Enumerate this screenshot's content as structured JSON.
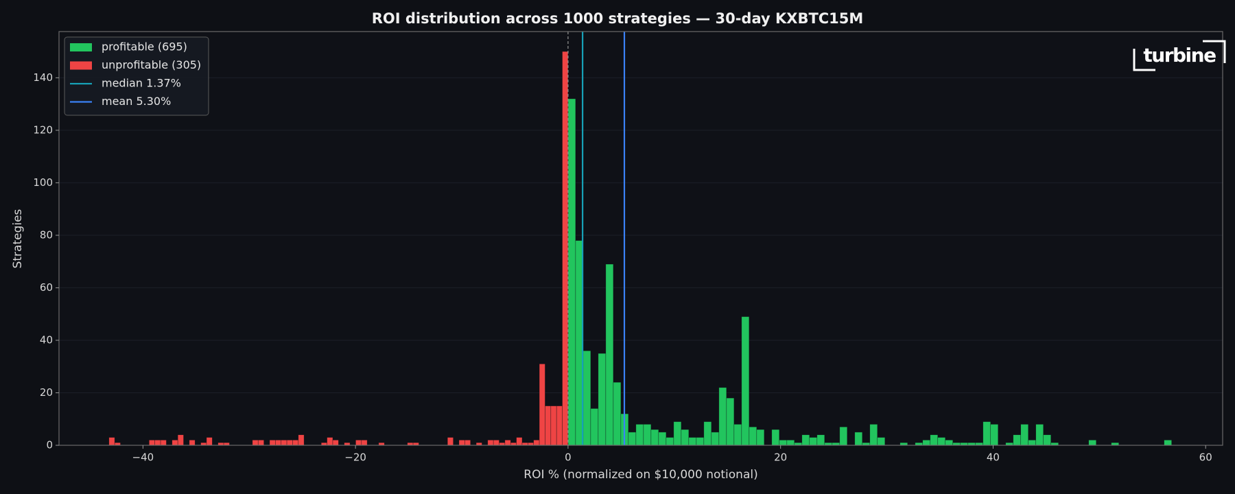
{
  "chart_data": {
    "type": "histogram",
    "title": "ROI distribution across 1000 strategies — 30-day KXBTC15M",
    "xlabel": "ROI % (normalized on $10,000 notional)",
    "ylabel": "Strategies",
    "logo": "turbine",
    "xlim": [
      -47.9,
      61.6
    ],
    "ylim": [
      0,
      157.6
    ],
    "xticks": [
      {
        "value": -40,
        "label": "−40"
      },
      {
        "value": -20,
        "label": "−20"
      },
      0,
      20,
      40,
      60
    ],
    "yticks": [
      0,
      20,
      40,
      60,
      80,
      100,
      120,
      140
    ],
    "grid": true,
    "legend_position": "upper left",
    "series": [
      {
        "name": "profitable (695)",
        "color": "#22c55e",
        "bins": [
          0,
          0.71,
          1.42,
          2.13,
          2.84,
          3.55,
          4.26,
          4.97,
          5.68,
          6.39,
          7.1,
          7.81,
          8.52,
          9.23,
          9.94,
          10.65,
          11.36,
          12.07,
          12.78,
          13.49,
          14.2,
          14.91,
          15.62,
          16.33,
          17.04,
          17.75,
          18.46,
          19.17,
          19.88,
          20.59,
          21.3,
          22.01,
          22.72,
          23.43,
          24.14,
          24.85,
          25.56,
          26.27,
          26.98,
          27.69,
          28.4,
          29.11,
          29.82,
          30.53,
          31.24,
          31.95,
          32.66,
          33.37,
          34.08,
          34.79,
          35.5,
          36.21,
          36.92,
          37.63,
          38.34,
          39.05,
          39.76,
          40.47,
          41.18,
          41.89,
          42.6,
          43.31,
          44.02,
          44.73,
          45.44,
          46.15,
          46.86,
          47.57,
          48.28,
          48.99,
          49.7,
          50.41,
          51.12,
          51.83,
          52.54,
          53.25,
          53.96,
          54.67,
          55.38,
          56.09,
          56.8
        ],
        "values": [
          132,
          78,
          36,
          14,
          35,
          69,
          24,
          12,
          5,
          8,
          8,
          6,
          5,
          3,
          9,
          6,
          3,
          3,
          9,
          5,
          22,
          18,
          8,
          49,
          7,
          6,
          0,
          6,
          2,
          2,
          1,
          4,
          3,
          4,
          1,
          1,
          7,
          0,
          5,
          1,
          8,
          3,
          0,
          0,
          1,
          0,
          1,
          2,
          4,
          3,
          2,
          1,
          1,
          1,
          1,
          9,
          8,
          0,
          1,
          4,
          8,
          2,
          8,
          4,
          1,
          0,
          0,
          0,
          0,
          2,
          0,
          0,
          1,
          0,
          0,
          0,
          0,
          0,
          0,
          2
        ]
      },
      {
        "name": "unprofitable (305)",
        "color": "#ef4444",
        "bins": [
          -43.2,
          -42.66,
          -42.12,
          -41.58,
          -41.04,
          -40.5,
          -39.96,
          -39.42,
          -38.88,
          -38.34,
          -37.8,
          -37.26,
          -36.72,
          -36.18,
          -35.64,
          -35.1,
          -34.56,
          -34.02,
          -33.48,
          -32.94,
          -32.4,
          -31.86,
          -31.32,
          -30.78,
          -30.24,
          -29.7,
          -29.16,
          -28.62,
          -28.08,
          -27.54,
          -27,
          -26.46,
          -25.92,
          -25.38,
          -24.84,
          -24.3,
          -23.76,
          -23.22,
          -22.68,
          -22.14,
          -21.6,
          -21.06,
          -20.52,
          -19.98,
          -19.44,
          -18.9,
          -18.36,
          -17.82,
          -17.28,
          -16.74,
          -16.2,
          -15.66,
          -15.12,
          -14.58,
          -14.04,
          -13.5,
          -12.96,
          -12.42,
          -11.88,
          -11.34,
          -10.8,
          -10.26,
          -9.72,
          -9.18,
          -8.64,
          -8.1,
          -7.56,
          -7.02,
          -6.48,
          -5.94,
          -5.4,
          -4.86,
          -4.32,
          -3.78,
          -3.24,
          -2.7,
          -2.16,
          -1.62,
          -1.08,
          -0.54,
          0
        ],
        "values": [
          3,
          1,
          0,
          0,
          0,
          0,
          0,
          2,
          2,
          2,
          0,
          2,
          4,
          0,
          2,
          0,
          1,
          3,
          0,
          1,
          1,
          0,
          0,
          0,
          0,
          2,
          2,
          0,
          2,
          2,
          2,
          2,
          2,
          4,
          0,
          0,
          0,
          1,
          3,
          2,
          0,
          1,
          0,
          2,
          2,
          0,
          0,
          1,
          0,
          0,
          0,
          0,
          1,
          1,
          0,
          0,
          0,
          0,
          0,
          3,
          0,
          2,
          2,
          0,
          1,
          0,
          2,
          2,
          1,
          2,
          1,
          3,
          1,
          1,
          2,
          31,
          15,
          15,
          15,
          150
        ]
      }
    ],
    "vlines": [
      {
        "name": "median 1.37%",
        "value": 1.37,
        "color": "#17a2b8"
      },
      {
        "name": "mean 5.30%",
        "value": 5.3,
        "color": "#3b82f6"
      }
    ],
    "reference_lines": [
      {
        "value": 0,
        "color": "#8a8a8a",
        "dashed": true
      }
    ]
  }
}
